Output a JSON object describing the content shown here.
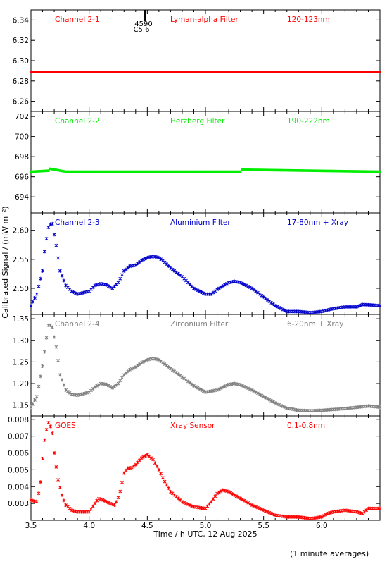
{
  "figure": {
    "ylabel": "Calibrated Signal / (mW m⁻²)",
    "xlabel": "Time / h UTC, 12 Aug 2025",
    "footnote": "(1 minute averages)"
  },
  "colors": {
    "channel_2_1": "#ff0000",
    "channel_2_2": "#00ee00",
    "channel_2_3": "#0000cc",
    "channel_2_4": "#808080",
    "goes": "#ff0000"
  },
  "event_marker": {
    "x": 4.48,
    "number": "4590",
    "class": "C5.6"
  },
  "chart_data": [
    {
      "type": "scatter",
      "panel": "channel_2_1",
      "labels": [
        "Channel 2-1",
        "Lyman-alpha Filter",
        "120-123nm"
      ],
      "xlim": [
        3.5,
        6.5
      ],
      "ylim": [
        6.25,
        6.35
      ],
      "yticks": [
        6.26,
        6.28,
        6.3,
        6.32,
        6.34
      ],
      "ytick_labels": [
        "6.26",
        "6.28",
        "6.30",
        "6.32",
        "6.34"
      ],
      "series": [
        {
          "color": "#ff0000",
          "x": [
            3.5,
            4.0,
            4.5,
            5.0,
            5.5,
            6.0,
            6.5
          ],
          "y": [
            6.289,
            6.289,
            6.289,
            6.289,
            6.289,
            6.289,
            6.289
          ]
        }
      ]
    },
    {
      "type": "scatter",
      "panel": "channel_2_2",
      "labels": [
        "Channel 2-2",
        "Herzberg Filter",
        "190-222nm"
      ],
      "xlim": [
        3.5,
        6.5
      ],
      "ylim": [
        692.4,
        702.5
      ],
      "yticks": [
        694,
        696,
        698,
        700,
        702
      ],
      "ytick_labels": [
        "694",
        "696",
        "698",
        "700",
        "702"
      ],
      "series": [
        {
          "color": "#00ee00",
          "x": [
            3.5,
            3.65,
            3.66,
            3.8,
            4.5,
            5.3,
            5.31,
            6.5
          ],
          "y": [
            696.5,
            696.6,
            696.8,
            696.5,
            696.5,
            696.5,
            696.7,
            696.5
          ]
        }
      ]
    },
    {
      "type": "scatter",
      "panel": "channel_2_3",
      "labels": [
        "Channel 2-3",
        "Aluminium Filter",
        "17-80nm + Xray"
      ],
      "xlim": [
        3.5,
        6.5
      ],
      "ylim": [
        2.455,
        2.63
      ],
      "yticks": [
        2.5,
        2.55,
        2.6
      ],
      "ytick_labels": [
        "2.50",
        "2.55",
        "2.60"
      ],
      "series": [
        {
          "color": "#0000cc",
          "x": [
            3.5,
            3.55,
            3.6,
            3.62,
            3.65,
            3.68,
            3.72,
            3.75,
            3.8,
            3.85,
            3.9,
            4.0,
            4.05,
            4.1,
            4.15,
            4.2,
            4.25,
            4.3,
            4.35,
            4.4,
            4.45,
            4.5,
            4.55,
            4.6,
            4.65,
            4.7,
            4.8,
            4.9,
            5.0,
            5.05,
            5.1,
            5.2,
            5.25,
            5.3,
            5.4,
            5.5,
            5.6,
            5.7,
            5.8,
            5.9,
            6.0,
            6.1,
            6.2,
            6.3,
            6.35,
            6.45,
            6.5
          ],
          "y": [
            2.47,
            2.49,
            2.53,
            2.57,
            2.605,
            2.615,
            2.57,
            2.53,
            2.505,
            2.495,
            2.49,
            2.495,
            2.505,
            2.508,
            2.506,
            2.5,
            2.51,
            2.53,
            2.538,
            2.54,
            2.548,
            2.553,
            2.555,
            2.553,
            2.545,
            2.535,
            2.52,
            2.5,
            2.49,
            2.49,
            2.498,
            2.51,
            2.512,
            2.51,
            2.5,
            2.485,
            2.47,
            2.46,
            2.46,
            2.458,
            2.46,
            2.465,
            2.468,
            2.468,
            2.472,
            2.471,
            2.47
          ]
        }
      ]
    },
    {
      "type": "scatter",
      "panel": "channel_2_4",
      "labels": [
        "Channel 2-4",
        "Zirconium Filter",
        "6-20nm + Xray"
      ],
      "xlim": [
        3.5,
        6.5
      ],
      "ylim": [
        1.125,
        1.36
      ],
      "yticks": [
        1.15,
        1.2,
        1.25,
        1.3,
        1.35
      ],
      "ytick_labels": [
        "1.15",
        "1.20",
        "1.25",
        "1.30",
        "1.35"
      ],
      "series": [
        {
          "color": "#808080",
          "x": [
            3.5,
            3.55,
            3.6,
            3.63,
            3.65,
            3.68,
            3.72,
            3.75,
            3.8,
            3.85,
            3.9,
            4.0,
            4.05,
            4.1,
            4.15,
            4.2,
            4.25,
            4.3,
            4.35,
            4.4,
            4.45,
            4.5,
            4.55,
            4.6,
            4.7,
            4.8,
            4.9,
            5.0,
            5.1,
            5.2,
            5.25,
            5.3,
            5.4,
            5.5,
            5.6,
            5.7,
            5.8,
            5.9,
            6.0,
            6.1,
            6.2,
            6.3,
            6.4,
            6.5
          ],
          "y": [
            1.145,
            1.17,
            1.24,
            1.3,
            1.335,
            1.335,
            1.28,
            1.22,
            1.185,
            1.175,
            1.173,
            1.18,
            1.192,
            1.2,
            1.198,
            1.19,
            1.2,
            1.22,
            1.232,
            1.238,
            1.248,
            1.255,
            1.258,
            1.255,
            1.235,
            1.215,
            1.195,
            1.18,
            1.185,
            1.198,
            1.2,
            1.197,
            1.185,
            1.17,
            1.155,
            1.143,
            1.138,
            1.137,
            1.138,
            1.14,
            1.142,
            1.145,
            1.148,
            1.145
          ]
        }
      ]
    },
    {
      "type": "scatter",
      "panel": "goes",
      "labels": [
        "GOES",
        "Xray Sensor",
        "0.1-0.8nm"
      ],
      "xlim": [
        3.5,
        6.5
      ],
      "ylim": [
        0.002,
        0.0082
      ],
      "yticks": [
        0.003,
        0.004,
        0.005,
        0.006,
        0.007,
        0.008
      ],
      "ytick_labels": [
        "0.003",
        "0.004",
        "0.005",
        "0.006",
        "0.007",
        "0.008"
      ],
      "series": [
        {
          "color": "#ff0000",
          "x": [
            3.5,
            3.55,
            3.58,
            3.61,
            3.63,
            3.65,
            3.68,
            3.7,
            3.73,
            3.77,
            3.8,
            3.85,
            3.9,
            4.0,
            4.05,
            4.08,
            4.12,
            4.18,
            4.22,
            4.26,
            4.3,
            4.33,
            4.36,
            4.4,
            4.45,
            4.5,
            4.55,
            4.6,
            4.65,
            4.7,
            4.8,
            4.9,
            5.0,
            5.05,
            5.1,
            5.15,
            5.2,
            5.3,
            5.4,
            5.5,
            5.6,
            5.7,
            5.8,
            5.9,
            6.0,
            6.05,
            6.1,
            6.2,
            6.3,
            6.35,
            6.4,
            6.5
          ],
          "y": [
            0.0032,
            0.0031,
            0.004,
            0.0065,
            0.0073,
            0.0078,
            0.0074,
            0.006,
            0.0045,
            0.0034,
            0.0029,
            0.0026,
            0.0025,
            0.0025,
            0.003,
            0.0033,
            0.0032,
            0.003,
            0.0029,
            0.0035,
            0.0048,
            0.0051,
            0.0051,
            0.0053,
            0.0057,
            0.0059,
            0.0056,
            0.005,
            0.0043,
            0.0037,
            0.0031,
            0.0028,
            0.0027,
            0.0031,
            0.0036,
            0.0038,
            0.0037,
            0.0033,
            0.0029,
            0.0026,
            0.0023,
            0.0022,
            0.0022,
            0.0021,
            0.0022,
            0.0024,
            0.0025,
            0.0026,
            0.0025,
            0.0024,
            0.0027,
            0.0027
          ]
        }
      ]
    }
  ],
  "xaxis": {
    "ticks": [
      3.5,
      4.0,
      4.5,
      5.0,
      5.5,
      6.0
    ],
    "tick_labels": [
      "3.5",
      "4.0",
      "4.5",
      "5.0",
      "5.5",
      "6.0"
    ],
    "minor_step": 0.1
  }
}
